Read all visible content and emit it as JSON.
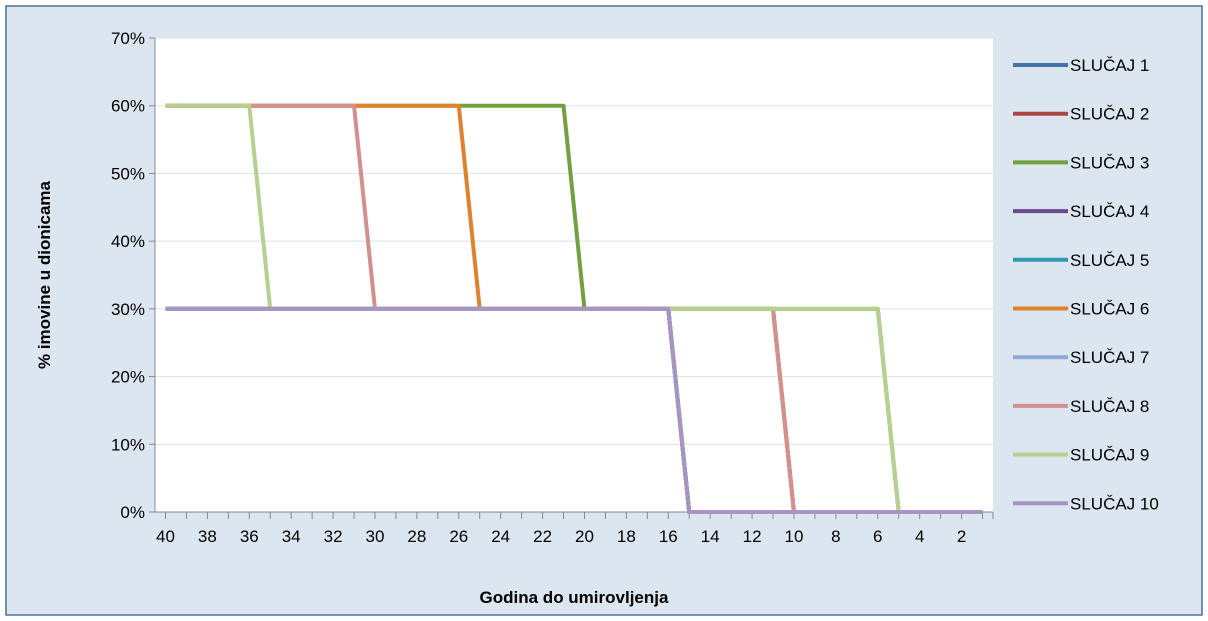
{
  "chart_data": {
    "type": "line",
    "title": "",
    "xlabel": "Godina  do umirovljenja",
    "ylabel": "% imovine u dionicama",
    "xlim": [
      40.5,
      0.5
    ],
    "ylim": [
      0,
      70
    ],
    "x_reversed": true,
    "x_tick_labels": [
      "40",
      "38",
      "36",
      "34",
      "32",
      "30",
      "28",
      "26",
      "24",
      "22",
      "20",
      "18",
      "16",
      "14",
      "12",
      "10",
      "8",
      "6",
      "4",
      "2"
    ],
    "y_tick_labels": [
      "0%",
      "10%",
      "20%",
      "30%",
      "40%",
      "50%",
      "60%",
      "70%"
    ],
    "y_ticks": [
      0,
      10,
      20,
      30,
      40,
      50,
      60,
      70
    ],
    "grid": "horizontal",
    "legend_position": "right",
    "series": [
      {
        "name": "SLUČAJ 1",
        "color": "#4572a7",
        "points": [
          [
            40,
            30
          ],
          [
            16,
            30
          ],
          [
            15,
            0
          ],
          [
            1,
            0
          ]
        ]
      },
      {
        "name": "SLUČAJ 2",
        "color": "#aa4643",
        "points": [
          [
            40,
            30
          ],
          [
            11,
            30
          ],
          [
            10,
            0
          ],
          [
            1,
            0
          ]
        ]
      },
      {
        "name": "SLUČAJ 3",
        "color": "#71a03d",
        "points": [
          [
            40,
            60
          ],
          [
            21,
            60
          ],
          [
            20,
            30
          ],
          [
            6,
            30
          ],
          [
            5,
            0
          ],
          [
            1,
            0
          ]
        ]
      },
      {
        "name": "SLUČAJ 4",
        "color": "#6a4b8c",
        "points": [
          [
            40,
            30
          ],
          [
            16,
            30
          ],
          [
            15,
            0
          ],
          [
            1,
            0
          ]
        ]
      },
      {
        "name": "SLUČAJ 5",
        "color": "#3196b0",
        "points": [
          [
            40,
            30
          ],
          [
            16,
            30
          ],
          [
            15,
            0
          ],
          [
            1,
            0
          ]
        ]
      },
      {
        "name": "SLUČAJ 6",
        "color": "#e0822c",
        "points": [
          [
            40,
            60
          ],
          [
            26,
            60
          ],
          [
            25,
            30
          ],
          [
            11,
            30
          ],
          [
            10,
            0
          ],
          [
            1,
            0
          ]
        ]
      },
      {
        "name": "SLUČAJ 7",
        "color": "#8fa9d4",
        "points": [
          [
            40,
            30
          ],
          [
            16,
            30
          ],
          [
            15,
            0
          ],
          [
            1,
            0
          ]
        ]
      },
      {
        "name": "SLUČAJ 8",
        "color": "#d4908e",
        "points": [
          [
            40,
            60
          ],
          [
            31,
            60
          ],
          [
            30,
            30
          ],
          [
            11,
            30
          ],
          [
            10,
            0
          ],
          [
            1,
            0
          ]
        ]
      },
      {
        "name": "SLUČAJ 9",
        "color": "#b5d08f",
        "points": [
          [
            40,
            60
          ],
          [
            36,
            60
          ],
          [
            35,
            30
          ],
          [
            6,
            30
          ],
          [
            5,
            0
          ],
          [
            1,
            0
          ]
        ]
      },
      {
        "name": "SLUČAJ 10",
        "color": "#a894c2",
        "points": [
          [
            40,
            30
          ],
          [
            16,
            30
          ],
          [
            15,
            0
          ],
          [
            1,
            0
          ]
        ]
      }
    ]
  },
  "colors": {
    "plot_area_border": "#4f6f9f",
    "outer_background": "#dce6f1",
    "plot_background": "#ffffff",
    "gridline": "#d9e2ef",
    "axis": "#888888"
  }
}
